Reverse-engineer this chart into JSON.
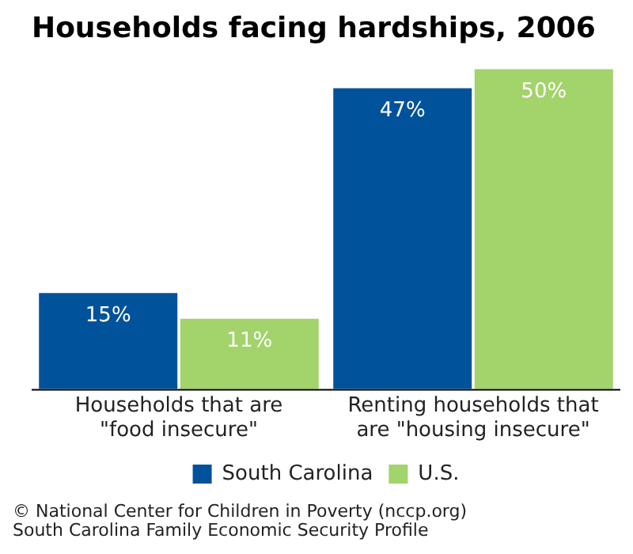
{
  "chart_data": {
    "type": "bar",
    "title": "Households facing hardships, 2006",
    "categories": [
      "Households that are \"food insecure\"",
      "Renting households that are \"housing insecure\""
    ],
    "series": [
      {
        "name": "South Carolina",
        "color": "#00529b",
        "values": [
          15,
          47
        ],
        "value_labels": [
          "15%",
          "47%"
        ]
      },
      {
        "name": "U.S.",
        "color": "#a3d36b",
        "values": [
          11,
          50
        ],
        "value_labels": [
          "11%",
          "50%"
        ]
      }
    ],
    "ylim": [
      0,
      50
    ],
    "grid": false,
    "legend": "bottom",
    "annotations": [
      "© National Center for Children in Poverty (nccp.org)",
      "South Carolina Family Economic Security Profile"
    ]
  }
}
